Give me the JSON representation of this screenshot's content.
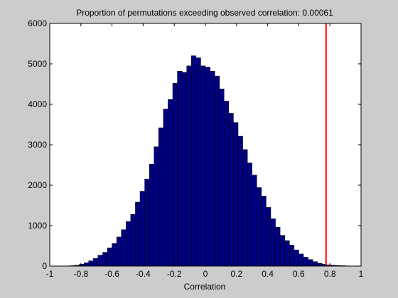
{
  "figure": {
    "background": "#cccccc"
  },
  "chart_data": {
    "type": "bar",
    "title": "Proportion of permutations exceeding observed correlation: 0.00061",
    "xlabel": "Correlation",
    "ylabel": "",
    "xlim": [
      -1,
      1
    ],
    "ylim": [
      0,
      6000
    ],
    "xticks": [
      -1,
      -0.8,
      -0.6,
      -0.4,
      -0.2,
      0,
      0.2,
      0.4,
      0.6,
      0.8,
      1
    ],
    "xtick_labels": [
      "-1",
      "-0.8",
      "-0.6",
      "-0.4",
      "-0.2",
      "0",
      "0.2",
      "0.4",
      "0.6",
      "0.8",
      "1"
    ],
    "yticks": [
      0,
      1000,
      2000,
      3000,
      4000,
      5000,
      6000
    ],
    "ytick_labels": [
      "0",
      "1000",
      "2000",
      "3000",
      "4000",
      "5000",
      "6000"
    ],
    "grid": false,
    "bin_width": 0.03,
    "bin_centers": [
      -0.855,
      -0.825,
      -0.795,
      -0.765,
      -0.735,
      -0.705,
      -0.675,
      -0.645,
      -0.615,
      -0.585,
      -0.555,
      -0.525,
      -0.495,
      -0.465,
      -0.435,
      -0.405,
      -0.375,
      -0.345,
      -0.315,
      -0.285,
      -0.255,
      -0.225,
      -0.195,
      -0.165,
      -0.135,
      -0.105,
      -0.075,
      -0.045,
      -0.015,
      0.015,
      0.045,
      0.075,
      0.105,
      0.135,
      0.165,
      0.195,
      0.225,
      0.255,
      0.285,
      0.315,
      0.345,
      0.375,
      0.405,
      0.435,
      0.465,
      0.495,
      0.525,
      0.555,
      0.585,
      0.615,
      0.645,
      0.675,
      0.705,
      0.735,
      0.765,
      0.795,
      0.825,
      0.855,
      0.885,
      0.915
    ],
    "counts": [
      10,
      20,
      45,
      80,
      130,
      190,
      270,
      340,
      450,
      560,
      720,
      900,
      1100,
      1280,
      1580,
      1850,
      2150,
      2520,
      2950,
      3420,
      3880,
      4120,
      4520,
      4820,
      4790,
      4950,
      5200,
      5150,
      4950,
      4920,
      4820,
      4700,
      4380,
      4080,
      3780,
      3550,
      3210,
      2880,
      2550,
      2250,
      1940,
      1730,
      1450,
      1170,
      960,
      760,
      630,
      520,
      400,
      300,
      220,
      160,
      110,
      70,
      45,
      30,
      20,
      15,
      10,
      5
    ],
    "bar_color": "#000080",
    "bar_edge_color": "#000000",
    "observed_value": 0.775,
    "observed_line_color": "#ff0000"
  }
}
